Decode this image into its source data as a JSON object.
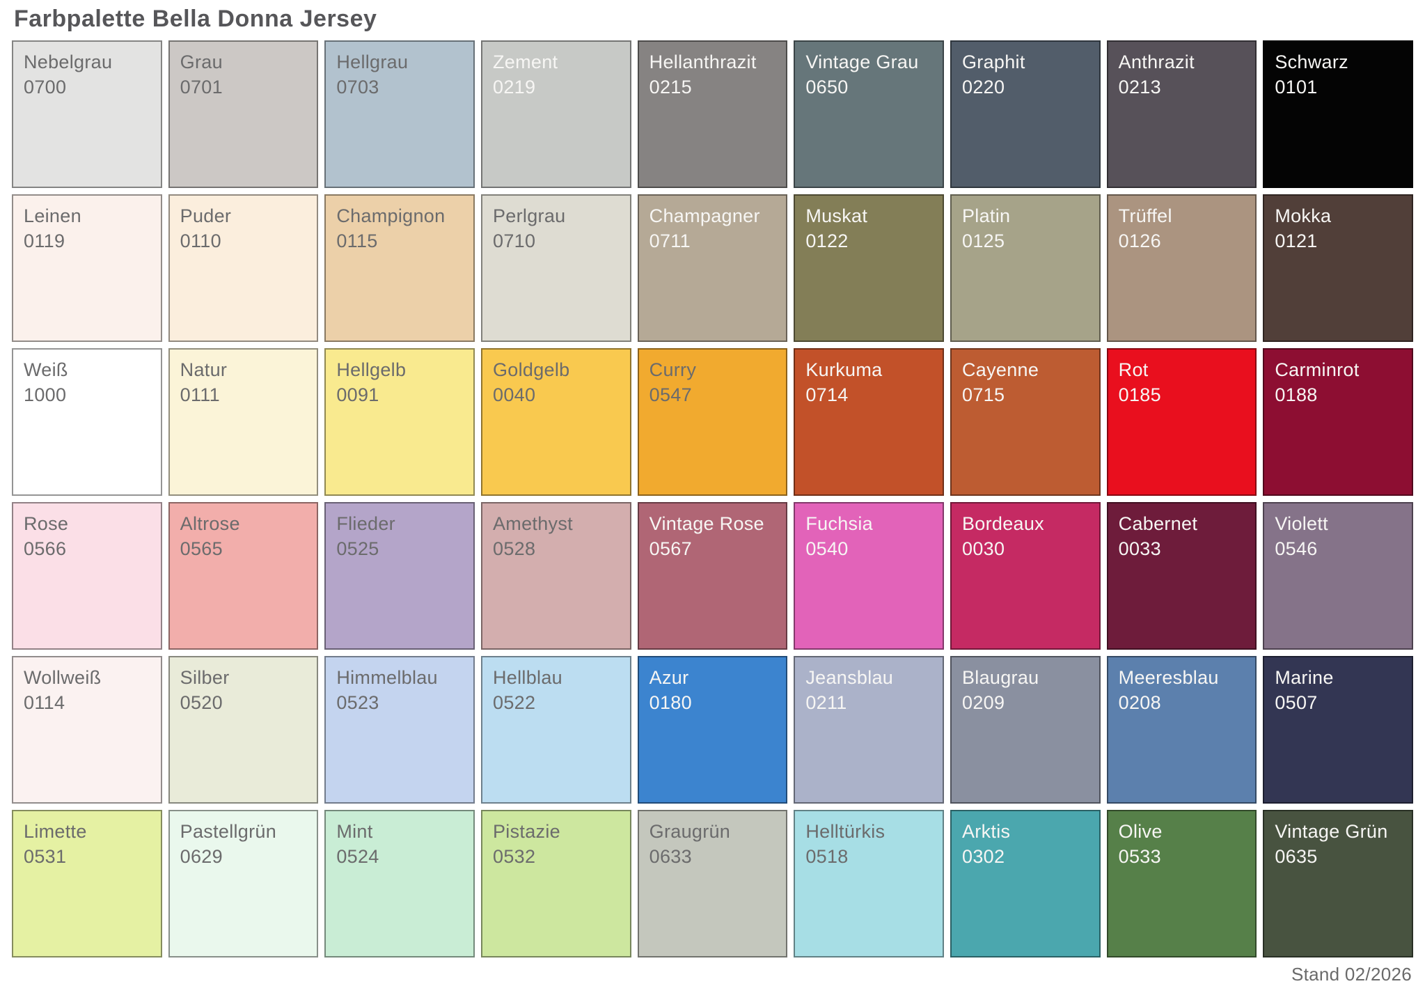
{
  "title": "Farbpalette Bella Donna Jersey",
  "footer": "Stand 02/2026",
  "text_colors": {
    "dark": "#6b6b6c",
    "light": "#f7f6f4"
  },
  "swatch_border_color": "rgba(0,0,0,0.42)",
  "palette": {
    "columns": 9,
    "swatches": [
      {
        "name": "Nebelgrau",
        "code": "0700",
        "color": "#e3e3e2",
        "text": "dark"
      },
      {
        "name": "Grau",
        "code": "0701",
        "color": "#ccc8c5",
        "text": "dark"
      },
      {
        "name": "Hellgrau",
        "code": "0703",
        "color": "#b2c2ce",
        "text": "dark"
      },
      {
        "name": "Zement",
        "code": "0219",
        "color": "#c7c9c6",
        "text": "light"
      },
      {
        "name": "Hellanthrazit",
        "code": "0215",
        "color": "#868382",
        "text": "light"
      },
      {
        "name": "Vintage Grau",
        "code": "0650",
        "color": "#66767a",
        "text": "light"
      },
      {
        "name": "Graphit",
        "code": "0220",
        "color": "#525d6a",
        "text": "light"
      },
      {
        "name": "Anthrazit",
        "code": "0213",
        "color": "#575159",
        "text": "light"
      },
      {
        "name": "Schwarz",
        "code": "0101",
        "color": "#040404",
        "text": "light"
      },
      {
        "name": "Leinen",
        "code": "0119",
        "color": "#fbf1ec",
        "text": "dark"
      },
      {
        "name": "Puder",
        "code": "0110",
        "color": "#fbeedd",
        "text": "dark"
      },
      {
        "name": "Champignon",
        "code": "0115",
        "color": "#ecd0a9",
        "text": "dark"
      },
      {
        "name": "Perlgrau",
        "code": "0710",
        "color": "#dedcd2",
        "text": "dark"
      },
      {
        "name": "Champagner",
        "code": "0711",
        "color": "#b5a996",
        "text": "light"
      },
      {
        "name": "Muskat",
        "code": "0122",
        "color": "#837e57",
        "text": "light"
      },
      {
        "name": "Platin",
        "code": "0125",
        "color": "#a6a389",
        "text": "light"
      },
      {
        "name": "Trüffel",
        "code": "0126",
        "color": "#ab9480",
        "text": "light"
      },
      {
        "name": "Mokka",
        "code": "0121",
        "color": "#513f39",
        "text": "light"
      },
      {
        "name": "Weiß",
        "code": "1000",
        "color": "#ffffff",
        "text": "dark"
      },
      {
        "name": "Natur",
        "code": "0111",
        "color": "#fbf4d8",
        "text": "dark"
      },
      {
        "name": "Hellgelb",
        "code": "0091",
        "color": "#f9ea8f",
        "text": "dark"
      },
      {
        "name": "Goldgelb",
        "code": "0040",
        "color": "#f9c94f",
        "text": "dark"
      },
      {
        "name": "Curry",
        "code": "0547",
        "color": "#f1aa2f",
        "text": "dark"
      },
      {
        "name": "Kurkuma",
        "code": "0714",
        "color": "#c25129",
        "text": "light"
      },
      {
        "name": "Cayenne",
        "code": "0715",
        "color": "#bd5c32",
        "text": "light"
      },
      {
        "name": "Rot",
        "code": "0185",
        "color": "#e90f1e",
        "text": "light"
      },
      {
        "name": "Carminrot",
        "code": "0188",
        "color": "#8d0e32",
        "text": "light"
      },
      {
        "name": "Rose",
        "code": "0566",
        "color": "#fbdfe7",
        "text": "dark"
      },
      {
        "name": "Altrose",
        "code": "0565",
        "color": "#f2aeab",
        "text": "dark"
      },
      {
        "name": "Flieder",
        "code": "0525",
        "color": "#b4a5c9",
        "text": "dark"
      },
      {
        "name": "Amethyst",
        "code": "0528",
        "color": "#d3aeae",
        "text": "dark"
      },
      {
        "name": "Vintage Rose",
        "code": "0567",
        "color": "#b06675",
        "text": "light"
      },
      {
        "name": "Fuchsia",
        "code": "0540",
        "color": "#e263b9",
        "text": "light"
      },
      {
        "name": "Bordeaux",
        "code": "0030",
        "color": "#c52a63",
        "text": "light"
      },
      {
        "name": "Cabernet",
        "code": "0033",
        "color": "#6e1c3b",
        "text": "light"
      },
      {
        "name": "Violett",
        "code": "0546",
        "color": "#857389",
        "text": "light"
      },
      {
        "name": "Wollweiß",
        "code": "0114",
        "color": "#fbf2f1",
        "text": "dark"
      },
      {
        "name": "Silber",
        "code": "0520",
        "color": "#e9ebd9",
        "text": "dark"
      },
      {
        "name": "Himmelblau",
        "code": "0523",
        "color": "#c4d4ef",
        "text": "dark"
      },
      {
        "name": "Hellblau",
        "code": "0522",
        "color": "#bcddf1",
        "text": "dark"
      },
      {
        "name": "Azur",
        "code": "0180",
        "color": "#3c84cf",
        "text": "light"
      },
      {
        "name": "Jeansblau",
        "code": "0211",
        "color": "#abb2c9",
        "text": "light"
      },
      {
        "name": "Blaugrau",
        "code": "0209",
        "color": "#8a90a0",
        "text": "light"
      },
      {
        "name": "Meeresblau",
        "code": "0208",
        "color": "#5c80ad",
        "text": "light"
      },
      {
        "name": "Marine",
        "code": "0507",
        "color": "#333653",
        "text": "light"
      },
      {
        "name": "Limette",
        "code": "0531",
        "color": "#e5f1a3",
        "text": "dark"
      },
      {
        "name": "Pastellgrün",
        "code": "0629",
        "color": "#eaf8ed",
        "text": "dark"
      },
      {
        "name": "Mint",
        "code": "0524",
        "color": "#c9edd5",
        "text": "dark"
      },
      {
        "name": "Pistazie",
        "code": "0532",
        "color": "#cde79f",
        "text": "dark"
      },
      {
        "name": "Graugrün",
        "code": "0633",
        "color": "#c4c7bd",
        "text": "dark"
      },
      {
        "name": "Helltürkis",
        "code": "0518",
        "color": "#a7dee5",
        "text": "dark"
      },
      {
        "name": "Arktis",
        "code": "0302",
        "color": "#4ba7ae",
        "text": "light"
      },
      {
        "name": "Olive",
        "code": "0533",
        "color": "#568049",
        "text": "light"
      },
      {
        "name": "Vintage Grün",
        "code": "0635",
        "color": "#485340",
        "text": "light"
      }
    ]
  }
}
